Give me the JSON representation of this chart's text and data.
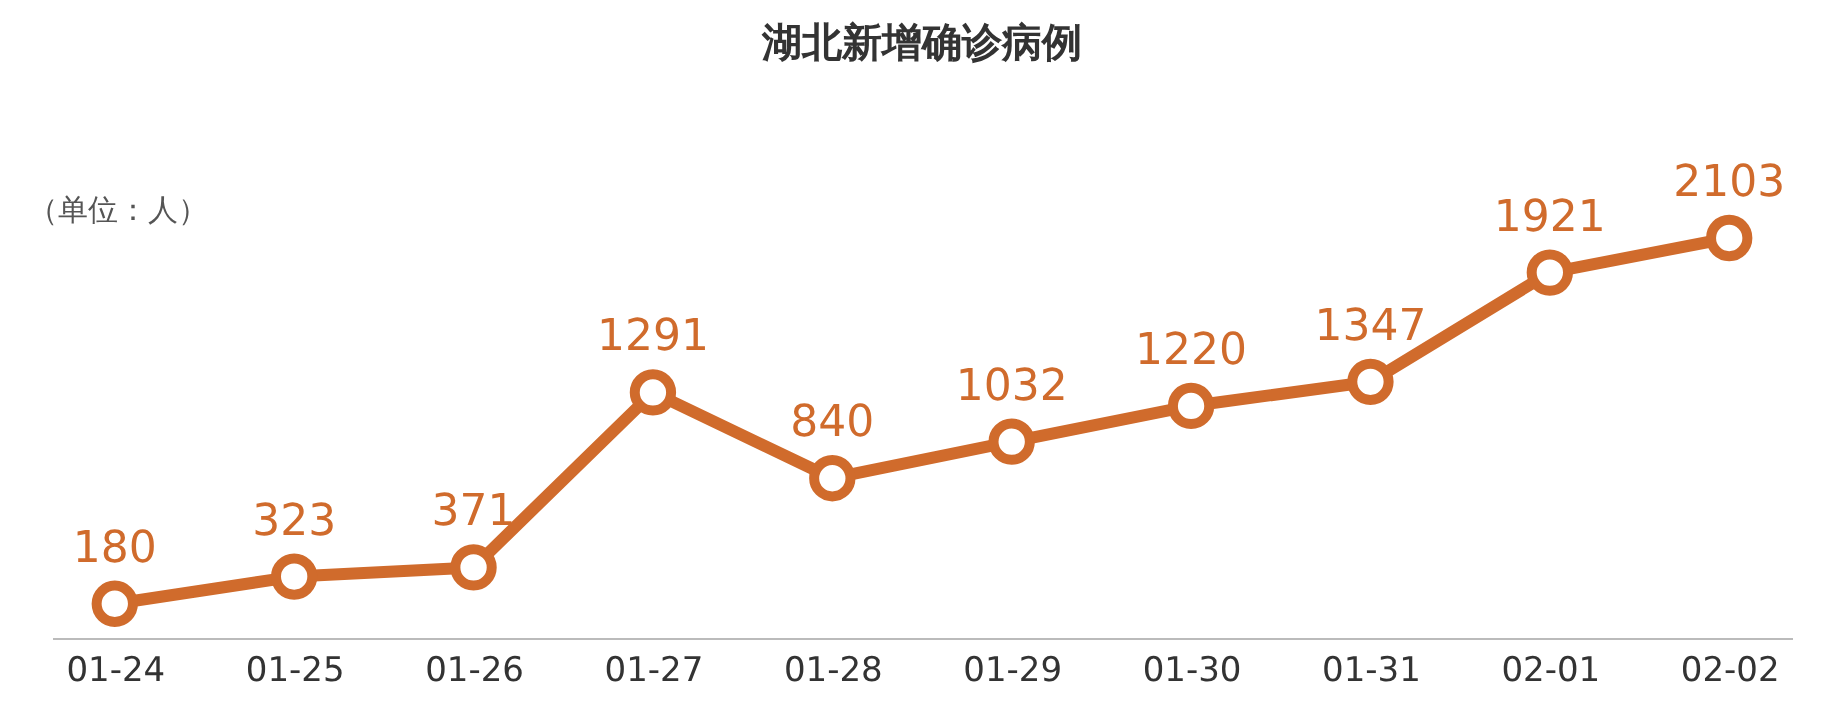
{
  "chart_data": {
    "type": "line",
    "title": "湖北新增确诊病例",
    "annotations": [
      "（单位：人）"
    ],
    "categories": [
      "01-24",
      "01-25",
      "01-26",
      "01-27",
      "01-28",
      "01-29",
      "01-30",
      "01-31",
      "02-01",
      "02-02"
    ],
    "series": [
      {
        "color": "#d06b2c",
        "values": [
          180,
          323,
          371,
          1291,
          840,
          1032,
          1220,
          1347,
          1921,
          2103
        ]
      }
    ],
    "data_labels": true,
    "marker": "circle",
    "line_style": "solid",
    "grid": false,
    "legend": false,
    "tick_labels": "x"
  }
}
